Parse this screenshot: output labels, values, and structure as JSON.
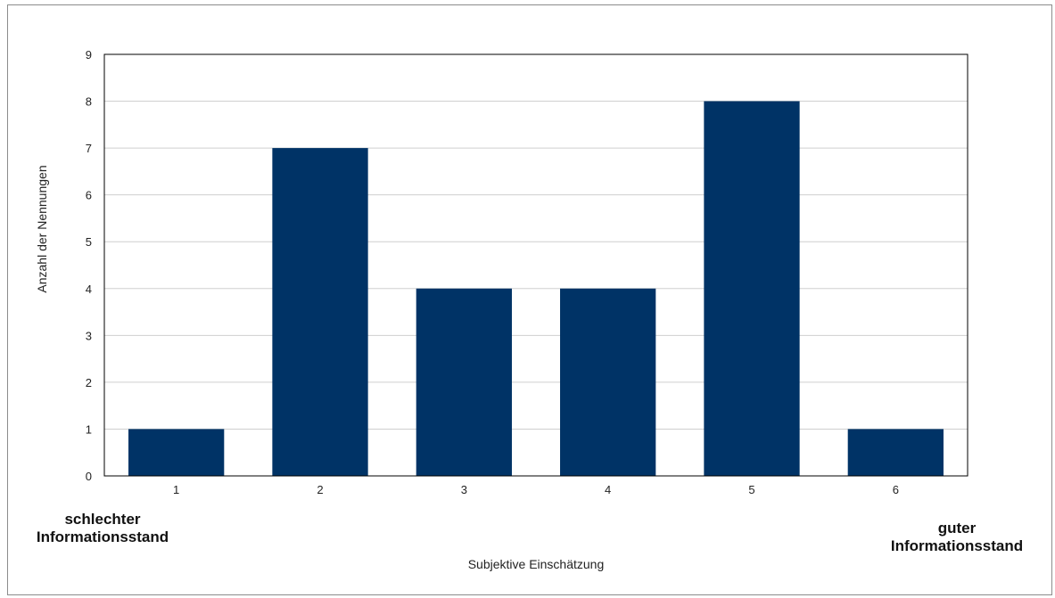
{
  "chart_data": {
    "type": "bar",
    "categories": [
      "1",
      "2",
      "3",
      "4",
      "5",
      "6"
    ],
    "values": [
      1,
      7,
      4,
      4,
      8,
      1
    ],
    "title": "",
    "xlabel": "Subjektive Einschätzung",
    "ylabel": "Anzahl der Nennungen",
    "ylim": [
      0,
      9
    ],
    "yticks": [
      0,
      1,
      2,
      3,
      4,
      5,
      6,
      7,
      8,
      9
    ],
    "grid": true,
    "bar_color": "#003366",
    "annotations": {
      "left_line1": "schlechter",
      "left_line2": "Informationsstand",
      "right_line1": "guter",
      "right_line2": "Informationsstand"
    }
  }
}
